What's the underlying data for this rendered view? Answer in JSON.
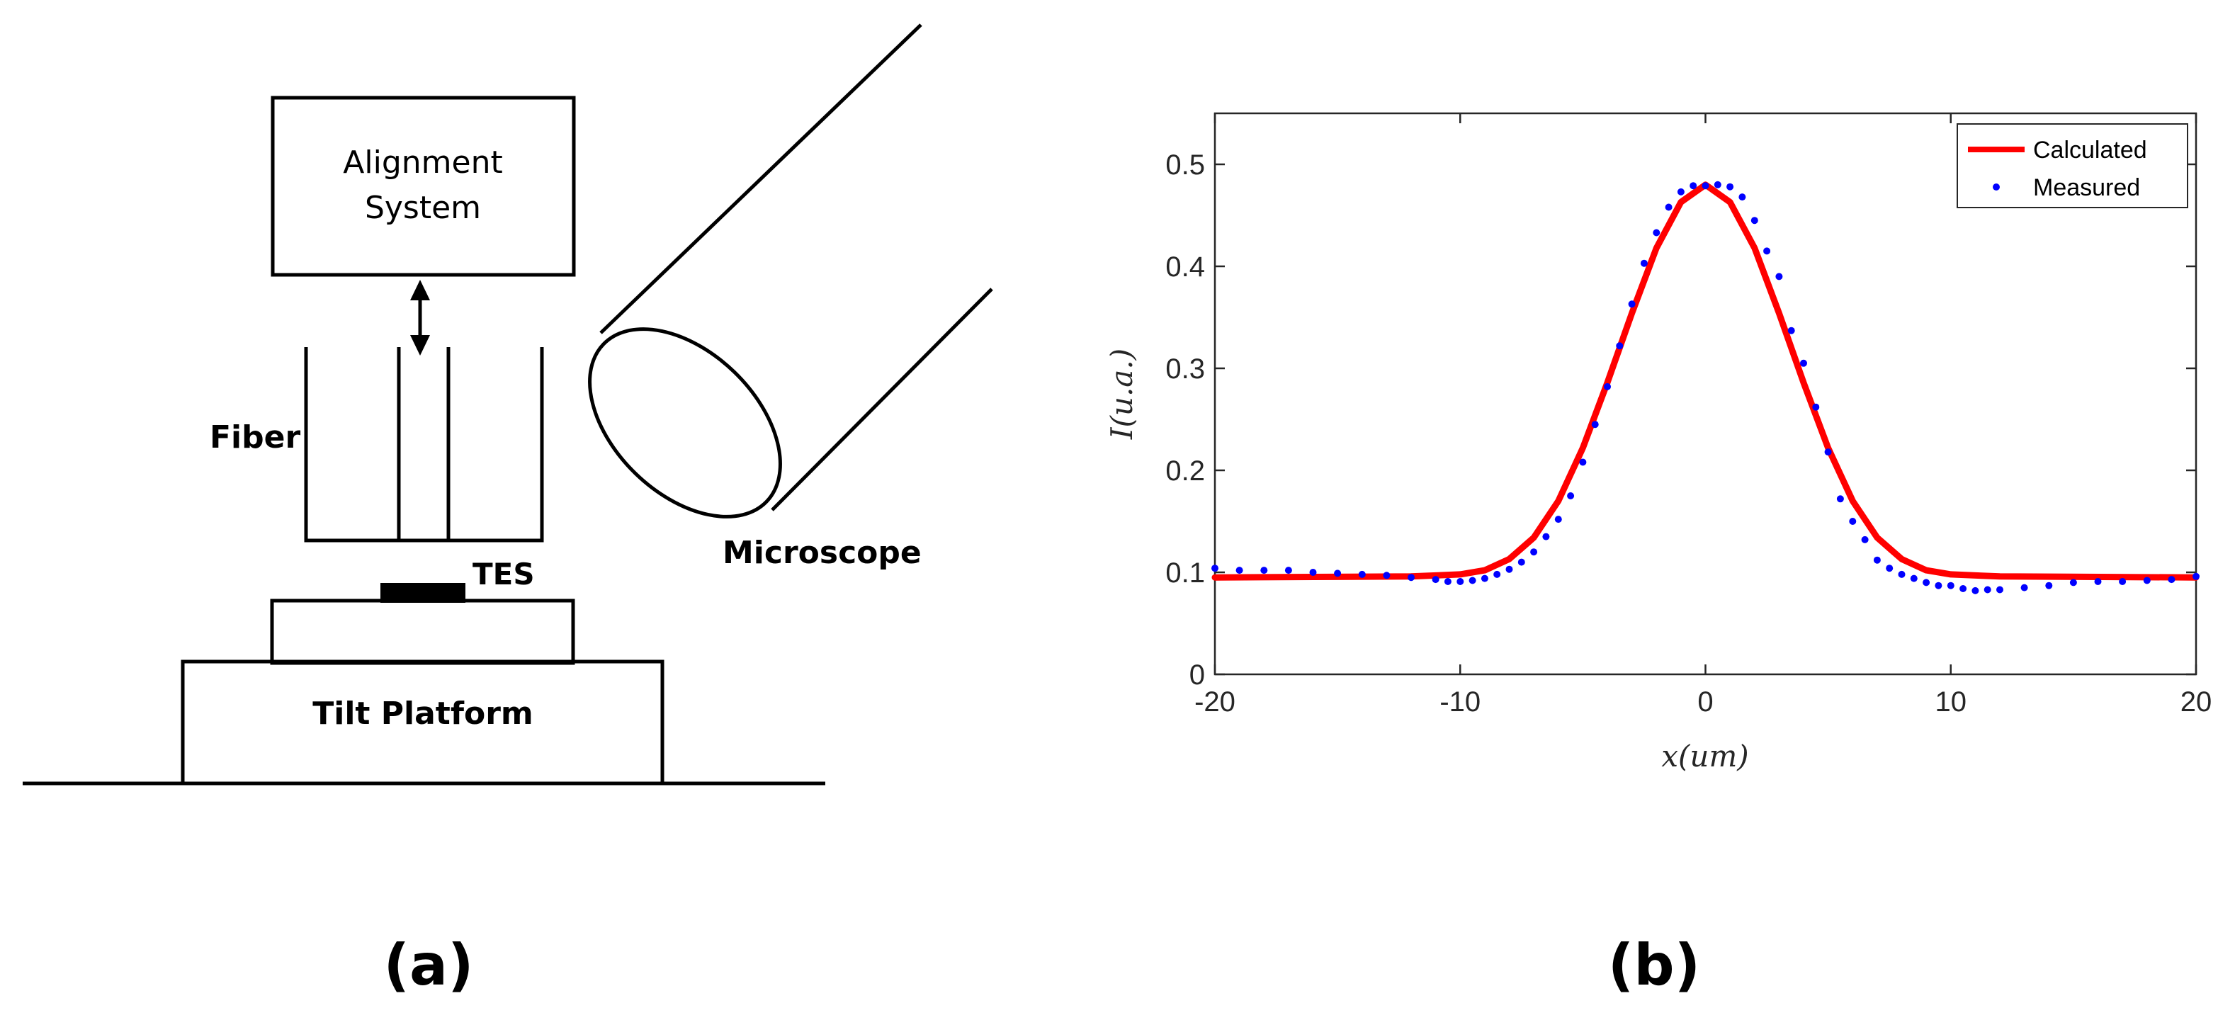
{
  "panel_a": {
    "label": "(a)",
    "alignment_system": "Alignment\nSystem",
    "alignment_line1": "Alignment",
    "alignment_line2": "System",
    "fiber": "Fiber",
    "microscope": "Microscope",
    "tes": "TES",
    "tilt_platform": "Tilt Platform"
  },
  "panel_b": {
    "label": "(b)"
  },
  "chart_data": {
    "type": "line",
    "title": "",
    "xlabel": "x(um)",
    "ylabel": "I(u.a.)",
    "xlim": [
      -20,
      20
    ],
    "ylim": [
      0,
      0.55
    ],
    "x_ticks": [
      -20,
      -10,
      0,
      10,
      20
    ],
    "y_ticks": [
      0,
      0.1,
      0.2,
      0.3,
      0.4,
      0.5
    ],
    "x_tick_labels": [
      "-20",
      "-10",
      "0",
      "10",
      "20"
    ],
    "y_tick_labels": [
      "0",
      "0.1",
      "0.2",
      "0.3",
      "0.4",
      "0.5"
    ],
    "legend_position": "top-right",
    "series": [
      {
        "name": "Calculated",
        "style": "line",
        "color": "#ff0000",
        "x": [
          -20,
          -12,
          -10,
          -9,
          -8,
          -7,
          -6,
          -5,
          -4,
          -3,
          -2,
          -1,
          0,
          1,
          2,
          3,
          4,
          5,
          6,
          7,
          8,
          9,
          10,
          12,
          20
        ],
        "y": [
          0.095,
          0.096,
          0.098,
          0.102,
          0.113,
          0.134,
          0.17,
          0.222,
          0.286,
          0.354,
          0.418,
          0.463,
          0.48,
          0.463,
          0.418,
          0.354,
          0.286,
          0.222,
          0.17,
          0.134,
          0.113,
          0.102,
          0.098,
          0.096,
          0.095
        ]
      },
      {
        "name": "Measured",
        "style": "markers",
        "color": "#0000ff",
        "x": [
          -20,
          -19,
          -18,
          -17,
          -16,
          -15,
          -14,
          -13,
          -12,
          -11,
          -10.5,
          -10,
          -9.5,
          -9,
          -8.5,
          -8,
          -7.5,
          -7,
          -6.5,
          -6,
          -5.5,
          -5,
          -4.5,
          -4,
          -3.5,
          -3,
          -2.5,
          -2,
          -1.5,
          -1,
          -0.5,
          0,
          0.5,
          1,
          1.5,
          2,
          2.5,
          3,
          3.5,
          4,
          4.5,
          5,
          5.5,
          6,
          6.5,
          7,
          7.5,
          8,
          8.5,
          9,
          9.5,
          10,
          10.5,
          11,
          11.5,
          12,
          13,
          14,
          15,
          16,
          17,
          18,
          19,
          20
        ],
        "y": [
          0.104,
          0.102,
          0.102,
          0.102,
          0.1,
          0.099,
          0.098,
          0.097,
          0.095,
          0.093,
          0.091,
          0.091,
          0.092,
          0.094,
          0.098,
          0.103,
          0.11,
          0.12,
          0.135,
          0.152,
          0.175,
          0.208,
          0.245,
          0.282,
          0.322,
          0.363,
          0.403,
          0.433,
          0.458,
          0.473,
          0.479,
          0.479,
          0.48,
          0.478,
          0.468,
          0.445,
          0.415,
          0.39,
          0.337,
          0.305,
          0.262,
          0.218,
          0.172,
          0.15,
          0.132,
          0.112,
          0.104,
          0.098,
          0.094,
          0.09,
          0.087,
          0.087,
          0.084,
          0.082,
          0.083,
          0.083,
          0.085,
          0.087,
          0.09,
          0.091,
          0.091,
          0.092,
          0.093,
          0.096
        ]
      }
    ]
  }
}
